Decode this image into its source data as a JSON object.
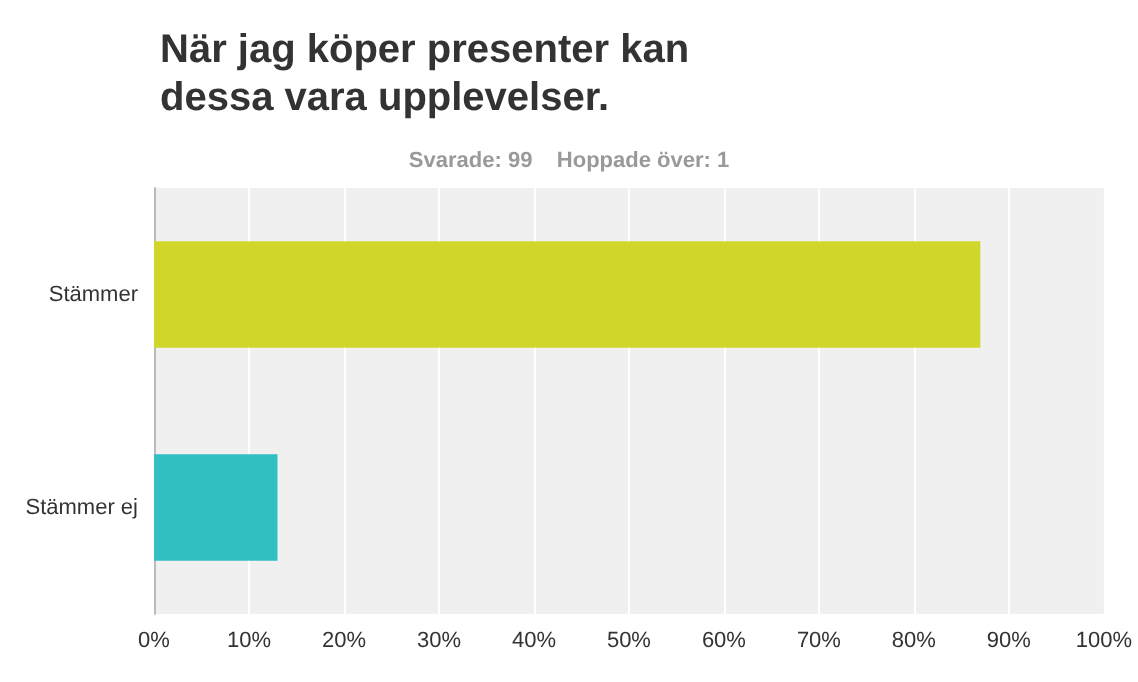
{
  "chart_data": {
    "type": "bar",
    "orientation": "horizontal",
    "title": "När jag köper presenter kan dessa vara upplevelser.",
    "subtitle": "Svarade: 99    Hoppade över: 1",
    "categories": [
      "Stämmer",
      "Stämmer ej"
    ],
    "values": [
      87,
      13
    ],
    "colors": [
      "#d0d62a",
      "#31bfc1"
    ],
    "xlim": [
      0,
      100
    ],
    "xticks": [
      {
        "value": 0,
        "label": "0%"
      },
      {
        "value": 10,
        "label": "10%"
      },
      {
        "value": 20,
        "label": "20%"
      },
      {
        "value": 30,
        "label": "30%"
      },
      {
        "value": 40,
        "label": "40%"
      },
      {
        "value": 50,
        "label": "50%"
      },
      {
        "value": 60,
        "label": "60%"
      },
      {
        "value": 70,
        "label": "70%"
      },
      {
        "value": 80,
        "label": "80%"
      },
      {
        "value": 90,
        "label": "90%"
      },
      {
        "value": 100,
        "label": "100%"
      }
    ],
    "grid": "x"
  }
}
